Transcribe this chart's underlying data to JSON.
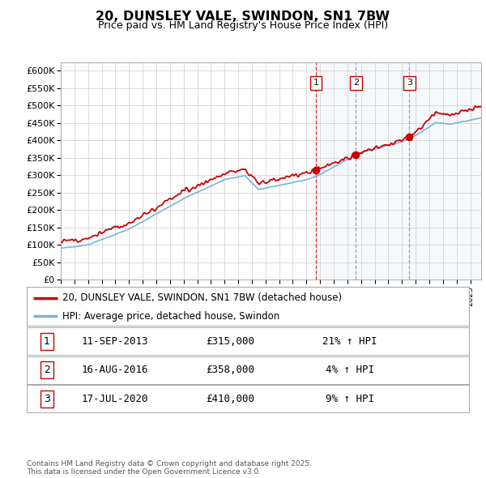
{
  "title": "20, DUNSLEY VALE, SWINDON, SN1 7BW",
  "subtitle": "Price paid vs. HM Land Registry's House Price Index (HPI)",
  "ylim": [
    0,
    625000
  ],
  "yticks": [
    0,
    50000,
    100000,
    150000,
    200000,
    250000,
    300000,
    350000,
    400000,
    450000,
    500000,
    550000,
    600000
  ],
  "ytick_labels": [
    "£0",
    "£50K",
    "£100K",
    "£150K",
    "£200K",
    "£250K",
    "£300K",
    "£350K",
    "£400K",
    "£450K",
    "£500K",
    "£550K",
    "£600K"
  ],
  "hpi_color": "#7ab4d8",
  "price_color": "#cc0000",
  "background_color": "#ffffff",
  "grid_color": "#cccccc",
  "shade_color": "#daeaf7",
  "legend_line1": "20, DUNSLEY VALE, SWINDON, SN1 7BW (detached house)",
  "legend_line2": "HPI: Average price, detached house, Swindon",
  "sales": [
    {
      "num": 1,
      "date": "11-SEP-2013",
      "price": 315000,
      "hpi_pct": "21%",
      "x_year": 2013.69
    },
    {
      "num": 2,
      "date": "16-AUG-2016",
      "price": 358000,
      "hpi_pct": "4%",
      "x_year": 2016.62
    },
    {
      "num": 3,
      "date": "17-JUL-2020",
      "price": 410000,
      "hpi_pct": "9%",
      "x_year": 2020.54
    }
  ],
  "footer": "Contains HM Land Registry data © Crown copyright and database right 2025.\nThis data is licensed under the Open Government Licence v3.0.",
  "xlim_start": 1995,
  "xlim_end": 2025.8
}
